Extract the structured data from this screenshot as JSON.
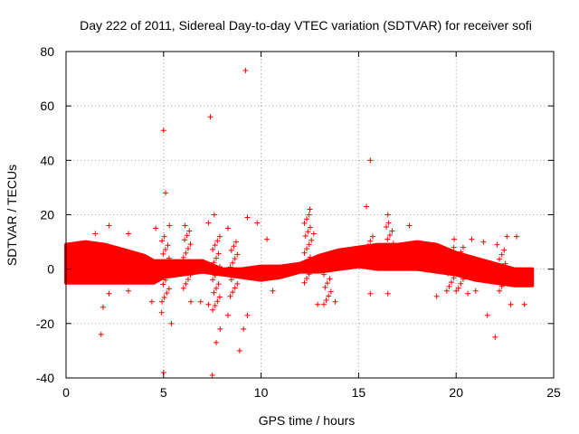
{
  "chart_data": {
    "type": "scatter",
    "title": "Day 222 of 2011, Sidereal Day-to-day VTEC variation (SDTVAR) for receiver sofi",
    "xlabel": "GPS time / hours",
    "ylabel": "SDTVAR / TECUs",
    "xlim": [
      0,
      25
    ],
    "ylim": [
      -40,
      80
    ],
    "xticks": [
      0,
      5,
      10,
      15,
      20,
      25
    ],
    "yticks": [
      -40,
      -20,
      0,
      20,
      40,
      60,
      80
    ],
    "grid": true,
    "marker": "+",
    "color": "#ff0000",
    "band": [
      {
        "x": 0.0,
        "lo": -5,
        "hi": 9
      },
      {
        "x": 1.0,
        "lo": -5,
        "hi": 10
      },
      {
        "x": 2.0,
        "lo": -5,
        "hi": 9
      },
      {
        "x": 3.0,
        "lo": -5,
        "hi": 7
      },
      {
        "x": 4.0,
        "lo": -5,
        "hi": 5
      },
      {
        "x": 4.5,
        "lo": -5,
        "hi": 3
      },
      {
        "x": 5.0,
        "lo": -3,
        "hi": 3
      },
      {
        "x": 6.0,
        "lo": -2,
        "hi": 3
      },
      {
        "x": 7.0,
        "lo": -1,
        "hi": 3
      },
      {
        "x": 8.0,
        "lo": -2,
        "hi": 0
      },
      {
        "x": 9.0,
        "lo": -3,
        "hi": 0
      },
      {
        "x": 10.0,
        "lo": -4,
        "hi": 1
      },
      {
        "x": 11.0,
        "lo": -3,
        "hi": 1
      },
      {
        "x": 12.0,
        "lo": -1,
        "hi": 2
      },
      {
        "x": 13.0,
        "lo": -1,
        "hi": 5
      },
      {
        "x": 14.0,
        "lo": 0,
        "hi": 7
      },
      {
        "x": 15.0,
        "lo": 1,
        "hi": 8
      },
      {
        "x": 16.0,
        "lo": 0,
        "hi": 9
      },
      {
        "x": 17.0,
        "lo": 0,
        "hi": 9
      },
      {
        "x": 18.0,
        "lo": 0,
        "hi": 10
      },
      {
        "x": 19.0,
        "lo": -1,
        "hi": 9
      },
      {
        "x": 20.0,
        "lo": -2,
        "hi": 6
      },
      {
        "x": 21.0,
        "lo": -4,
        "hi": 4
      },
      {
        "x": 22.0,
        "lo": -5,
        "hi": 2
      },
      {
        "x": 23.0,
        "lo": -6,
        "hi": 0
      },
      {
        "x": 23.9,
        "lo": -6,
        "hi": 0
      }
    ],
    "outliers": [
      {
        "x": 9.2,
        "y": 73
      },
      {
        "x": 7.4,
        "y": 56
      },
      {
        "x": 5.0,
        "y": 51
      },
      {
        "x": 15.6,
        "y": 40
      },
      {
        "x": 5.1,
        "y": 28
      },
      {
        "x": 15.4,
        "y": 23
      },
      {
        "x": 12.5,
        "y": 22
      },
      {
        "x": 7.6,
        "y": 20
      },
      {
        "x": 9.3,
        "y": 19
      },
      {
        "x": 16.5,
        "y": 20
      },
      {
        "x": 2.2,
        "y": 16
      },
      {
        "x": 5.3,
        "y": 16
      },
      {
        "x": 6.1,
        "y": 16
      },
      {
        "x": 7.3,
        "y": 17
      },
      {
        "x": 9.8,
        "y": 17
      },
      {
        "x": 17.6,
        "y": 16
      },
      {
        "x": 1.5,
        "y": 13
      },
      {
        "x": 3.2,
        "y": 13
      },
      {
        "x": 4.6,
        "y": 15
      },
      {
        "x": 8.3,
        "y": 15
      },
      {
        "x": 10.3,
        "y": 11
      },
      {
        "x": 12.7,
        "y": 13
      },
      {
        "x": 19.9,
        "y": 11
      },
      {
        "x": 20.8,
        "y": 11
      },
      {
        "x": 21.4,
        "y": 10
      },
      {
        "x": 22.6,
        "y": 12
      },
      {
        "x": 23.1,
        "y": 12
      },
      {
        "x": 22.1,
        "y": 9
      },
      {
        "x": 1.9,
        "y": -14
      },
      {
        "x": 1.8,
        "y": -24
      },
      {
        "x": 5.0,
        "y": -38
      },
      {
        "x": 7.5,
        "y": -39
      },
      {
        "x": 7.7,
        "y": -27
      },
      {
        "x": 7.9,
        "y": -22
      },
      {
        "x": 8.9,
        "y": -30
      },
      {
        "x": 9.1,
        "y": -22
      },
      {
        "x": 5.4,
        "y": -20
      },
      {
        "x": 4.9,
        "y": -16
      },
      {
        "x": 7.3,
        "y": -13
      },
      {
        "x": 8.3,
        "y": -17
      },
      {
        "x": 9.3,
        "y": -17
      },
      {
        "x": 6.4,
        "y": -12
      },
      {
        "x": 2.2,
        "y": -9
      },
      {
        "x": 3.2,
        "y": -8
      },
      {
        "x": 12.9,
        "y": -13
      },
      {
        "x": 13.8,
        "y": -12
      },
      {
        "x": 15.6,
        "y": -9
      },
      {
        "x": 16.5,
        "y": -9
      },
      {
        "x": 19.0,
        "y": -10
      },
      {
        "x": 20.0,
        "y": -8
      },
      {
        "x": 20.6,
        "y": -9
      },
      {
        "x": 21.0,
        "y": -8
      },
      {
        "x": 21.6,
        "y": -17
      },
      {
        "x": 22.0,
        "y": -25
      },
      {
        "x": 22.8,
        "y": -13
      },
      {
        "x": 23.5,
        "y": -13
      },
      {
        "x": 10.6,
        "y": -8
      },
      {
        "x": 4.4,
        "y": -12
      },
      {
        "x": 6.9,
        "y": -12
      },
      {
        "x": 0.1,
        "y": -1
      }
    ],
    "clusters": [
      {
        "x": 5.1,
        "ylo": -12,
        "yhi": 12
      },
      {
        "x": 6.2,
        "ylo": -7,
        "yhi": 14
      },
      {
        "x": 7.7,
        "ylo": -15,
        "yhi": 12
      },
      {
        "x": 8.6,
        "ylo": -10,
        "yhi": 10
      },
      {
        "x": 12.4,
        "ylo": -5,
        "yhi": 20
      },
      {
        "x": 13.4,
        "ylo": -13,
        "yhi": -2
      },
      {
        "x": 15.6,
        "ylo": 2,
        "yhi": 12
      },
      {
        "x": 16.6,
        "ylo": 5,
        "yhi": 17
      },
      {
        "x": 19.7,
        "ylo": -8,
        "yhi": 8
      },
      {
        "x": 20.3,
        "ylo": -7,
        "yhi": 8
      },
      {
        "x": 22.4,
        "ylo": -8,
        "yhi": 7
      }
    ]
  }
}
